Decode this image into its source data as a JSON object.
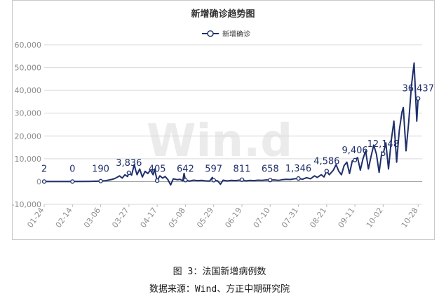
{
  "chart_data": {
    "type": "line",
    "title": "新增确诊趋势图",
    "legend": {
      "entries": [
        "新增确诊"
      ],
      "position": "top-center"
    },
    "watermark": "Win.d",
    "xlabel": "",
    "ylabel": "",
    "ylim": [
      -10000,
      60000
    ],
    "yticks": [
      -10000,
      0,
      10000,
      20000,
      30000,
      40000,
      50000,
      60000
    ],
    "ytick_labels": [
      "-10,000",
      "0",
      "10,000",
      "20,000",
      "30,000",
      "40,000",
      "50,000",
      "60,000"
    ],
    "x_range": [
      "2020-01-24",
      "2020-10-31"
    ],
    "xtick_labels": [
      "01-24",
      "02-14",
      "03-06",
      "03-27",
      "04-17",
      "05-08",
      "05-29",
      "06-19",
      "07-10",
      "07-31",
      "08-21",
      "09-11",
      "10-02",
      "10-28"
    ],
    "xtick_dates": [
      "2020-01-24",
      "2020-02-14",
      "2020-03-06",
      "2020-03-27",
      "2020-04-17",
      "2020-05-08",
      "2020-05-29",
      "2020-06-19",
      "2020-07-10",
      "2020-07-31",
      "2020-08-21",
      "2020-09-11",
      "2020-10-02",
      "2020-10-28"
    ],
    "grid": true,
    "color": "#1f2f6b",
    "series": [
      {
        "name": "新增确诊",
        "points": [
          [
            "2020-01-24",
            2
          ],
          [
            "2020-02-01",
            0
          ],
          [
            "2020-02-14",
            0
          ],
          [
            "2020-02-25",
            50
          ],
          [
            "2020-03-06",
            190
          ],
          [
            "2020-03-10",
            400
          ],
          [
            "2020-03-14",
            900
          ],
          [
            "2020-03-16",
            1200
          ],
          [
            "2020-03-18",
            1800
          ],
          [
            "2020-03-20",
            2500
          ],
          [
            "2020-03-22",
            1500
          ],
          [
            "2020-03-24",
            3000
          ],
          [
            "2020-03-26",
            2200
          ],
          [
            "2020-03-27",
            3836
          ],
          [
            "2020-03-29",
            2800
          ],
          [
            "2020-03-31",
            7500
          ],
          [
            "2020-04-01",
            5000
          ],
          [
            "2020-04-02",
            3000
          ],
          [
            "2020-04-04",
            5500
          ],
          [
            "2020-04-06",
            2000
          ],
          [
            "2020-04-08",
            4500
          ],
          [
            "2020-04-10",
            3500
          ],
          [
            "2020-04-12",
            5000
          ],
          [
            "2020-04-14",
            3000
          ],
          [
            "2020-04-15",
            5500
          ],
          [
            "2020-04-17",
            405
          ],
          [
            "2020-04-19",
            2500
          ],
          [
            "2020-04-21",
            1500
          ],
          [
            "2020-04-23",
            2200
          ],
          [
            "2020-04-25",
            800
          ],
          [
            "2020-04-27",
            -1500
          ],
          [
            "2020-04-29",
            1200
          ],
          [
            "2020-05-02",
            800
          ],
          [
            "2020-05-04",
            1000
          ],
          [
            "2020-05-06",
            300
          ],
          [
            "2020-05-07",
            3600
          ],
          [
            "2020-05-08",
            642
          ],
          [
            "2020-05-11",
            200
          ],
          [
            "2020-05-14",
            600
          ],
          [
            "2020-05-17",
            400
          ],
          [
            "2020-05-20",
            500
          ],
          [
            "2020-05-23",
            300
          ],
          [
            "2020-05-26",
            200
          ],
          [
            "2020-05-28",
            1800
          ],
          [
            "2020-05-29",
            597
          ],
          [
            "2020-06-01",
            300
          ],
          [
            "2020-06-03",
            -1200
          ],
          [
            "2020-06-05",
            600
          ],
          [
            "2020-06-08",
            300
          ],
          [
            "2020-06-11",
            500
          ],
          [
            "2020-06-14",
            400
          ],
          [
            "2020-06-17",
            600
          ],
          [
            "2020-06-19",
            811
          ],
          [
            "2020-06-22",
            300
          ],
          [
            "2020-06-25",
            500
          ],
          [
            "2020-06-28",
            400
          ],
          [
            "2020-07-01",
            600
          ],
          [
            "2020-07-04",
            500
          ],
          [
            "2020-07-07",
            700
          ],
          [
            "2020-07-10",
            658
          ],
          [
            "2020-07-13",
            700
          ],
          [
            "2020-07-16",
            500
          ],
          [
            "2020-07-19",
            800
          ],
          [
            "2020-07-22",
            1000
          ],
          [
            "2020-07-25",
            900
          ],
          [
            "2020-07-28",
            1200
          ],
          [
            "2020-07-31",
            1346
          ],
          [
            "2020-08-03",
            1000
          ],
          [
            "2020-08-06",
            1700
          ],
          [
            "2020-08-09",
            1200
          ],
          [
            "2020-08-12",
            2500
          ],
          [
            "2020-08-14",
            1800
          ],
          [
            "2020-08-17",
            3000
          ],
          [
            "2020-08-19",
            2000
          ],
          [
            "2020-08-21",
            4586
          ],
          [
            "2020-08-23",
            3000
          ],
          [
            "2020-08-26",
            5000
          ],
          [
            "2020-08-28",
            7400
          ],
          [
            "2020-08-30",
            4500
          ],
          [
            "2020-09-01",
            3000
          ],
          [
            "2020-09-03",
            7000
          ],
          [
            "2020-09-05",
            8500
          ],
          [
            "2020-09-07",
            3500
          ],
          [
            "2020-09-09",
            9000
          ],
          [
            "2020-09-11",
            9406
          ],
          [
            "2020-09-13",
            10500
          ],
          [
            "2020-09-15",
            5000
          ],
          [
            "2020-09-17",
            10000
          ],
          [
            "2020-09-19",
            13500
          ],
          [
            "2020-09-21",
            5500
          ],
          [
            "2020-09-23",
            11000
          ],
          [
            "2020-09-25",
            16000
          ],
          [
            "2020-09-27",
            12000
          ],
          [
            "2020-09-29",
            4000
          ],
          [
            "2020-10-01",
            13000
          ],
          [
            "2020-10-02",
            12148
          ],
          [
            "2020-10-04",
            17000
          ],
          [
            "2020-10-06",
            5500
          ],
          [
            "2020-10-08",
            18000
          ],
          [
            "2020-10-10",
            26500
          ],
          [
            "2020-10-12",
            8500
          ],
          [
            "2020-10-14",
            22500
          ],
          [
            "2020-10-16",
            30500
          ],
          [
            "2020-10-17",
            32500
          ],
          [
            "2020-10-19",
            13500
          ],
          [
            "2020-10-21",
            26000
          ],
          [
            "2020-10-23",
            42000
          ],
          [
            "2020-10-25",
            52000
          ],
          [
            "2020-10-27",
            26500
          ],
          [
            "2020-10-28",
            36437
          ]
        ]
      }
    ],
    "markers": [
      "2020-01-24",
      "2020-02-14",
      "2020-03-06",
      "2020-03-27",
      "2020-04-17",
      "2020-05-08",
      "2020-05-29",
      "2020-06-19",
      "2020-07-10",
      "2020-07-31",
      "2020-08-21",
      "2020-09-11",
      "2020-10-02",
      "2020-10-28"
    ],
    "data_labels": [
      {
        "date": "2020-01-24",
        "label": "2"
      },
      {
        "date": "2020-02-14",
        "label": "0"
      },
      {
        "date": "2020-03-06",
        "label": "190"
      },
      {
        "date": "2020-03-27",
        "label": "3,836"
      },
      {
        "date": "2020-04-17",
        "label": "405"
      },
      {
        "date": "2020-05-08",
        "label": "642"
      },
      {
        "date": "2020-05-29",
        "label": "597"
      },
      {
        "date": "2020-06-19",
        "label": "811"
      },
      {
        "date": "2020-07-10",
        "label": "658"
      },
      {
        "date": "2020-07-31",
        "label": "1,346"
      },
      {
        "date": "2020-08-21",
        "label": "4,586"
      },
      {
        "date": "2020-09-11",
        "label": "9,406"
      },
      {
        "date": "2020-10-02",
        "label": "12,148"
      },
      {
        "date": "2020-10-28",
        "label": "36,437"
      }
    ]
  },
  "captions": {
    "figure": "图 3：法国新增病例数",
    "source": "数据来源：Wind、方正中期研究院"
  }
}
